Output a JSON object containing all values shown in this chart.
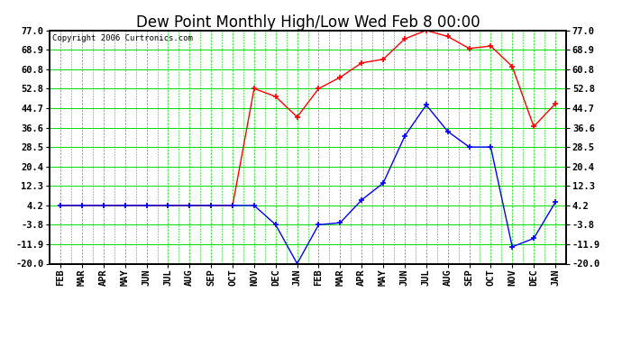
{
  "title": "Dew Point Monthly High/Low Wed Feb 8 00:00",
  "copyright": "Copyright 2006 Curtronics.com",
  "x_labels": [
    "FEB",
    "MAR",
    "APR",
    "MAY",
    "JUN",
    "JUL",
    "AUG",
    "SEP",
    "OCT",
    "NOV",
    "DEC",
    "JAN",
    "FEB",
    "MAR",
    "APR",
    "MAY",
    "JUN",
    "JUL",
    "AUG",
    "SEP",
    "OCT",
    "NOV",
    "DEC",
    "JAN"
  ],
  "y_ticks": [
    77.0,
    68.9,
    60.8,
    52.8,
    44.7,
    36.6,
    28.5,
    20.4,
    12.3,
    4.2,
    -3.8,
    -11.9,
    -20.0
  ],
  "ylim": [
    -20.0,
    77.0
  ],
  "red_data": [
    4.2,
    4.2,
    4.2,
    4.2,
    4.2,
    4.2,
    4.2,
    4.2,
    4.2,
    52.8,
    49.5,
    41.0,
    52.8,
    57.5,
    63.5,
    65.0,
    73.5,
    77.0,
    74.5,
    69.5,
    70.5,
    62.0,
    37.0,
    46.5
  ],
  "blue_data": [
    4.2,
    4.2,
    4.2,
    4.2,
    4.2,
    4.2,
    4.2,
    4.2,
    4.2,
    4.2,
    -3.8,
    -20.0,
    -3.8,
    -3.0,
    6.5,
    13.5,
    33.0,
    46.0,
    35.0,
    28.5,
    28.5,
    -13.0,
    -9.5,
    5.5
  ],
  "red_color": "#ff0000",
  "blue_color": "#0000ff",
  "grid_major_color": "#00dd00",
  "grid_minor_color": "#00dd00",
  "bg_color": "#ffffff",
  "title_fontsize": 12,
  "tick_fontsize": 7.5,
  "copyright_fontsize": 6.5
}
